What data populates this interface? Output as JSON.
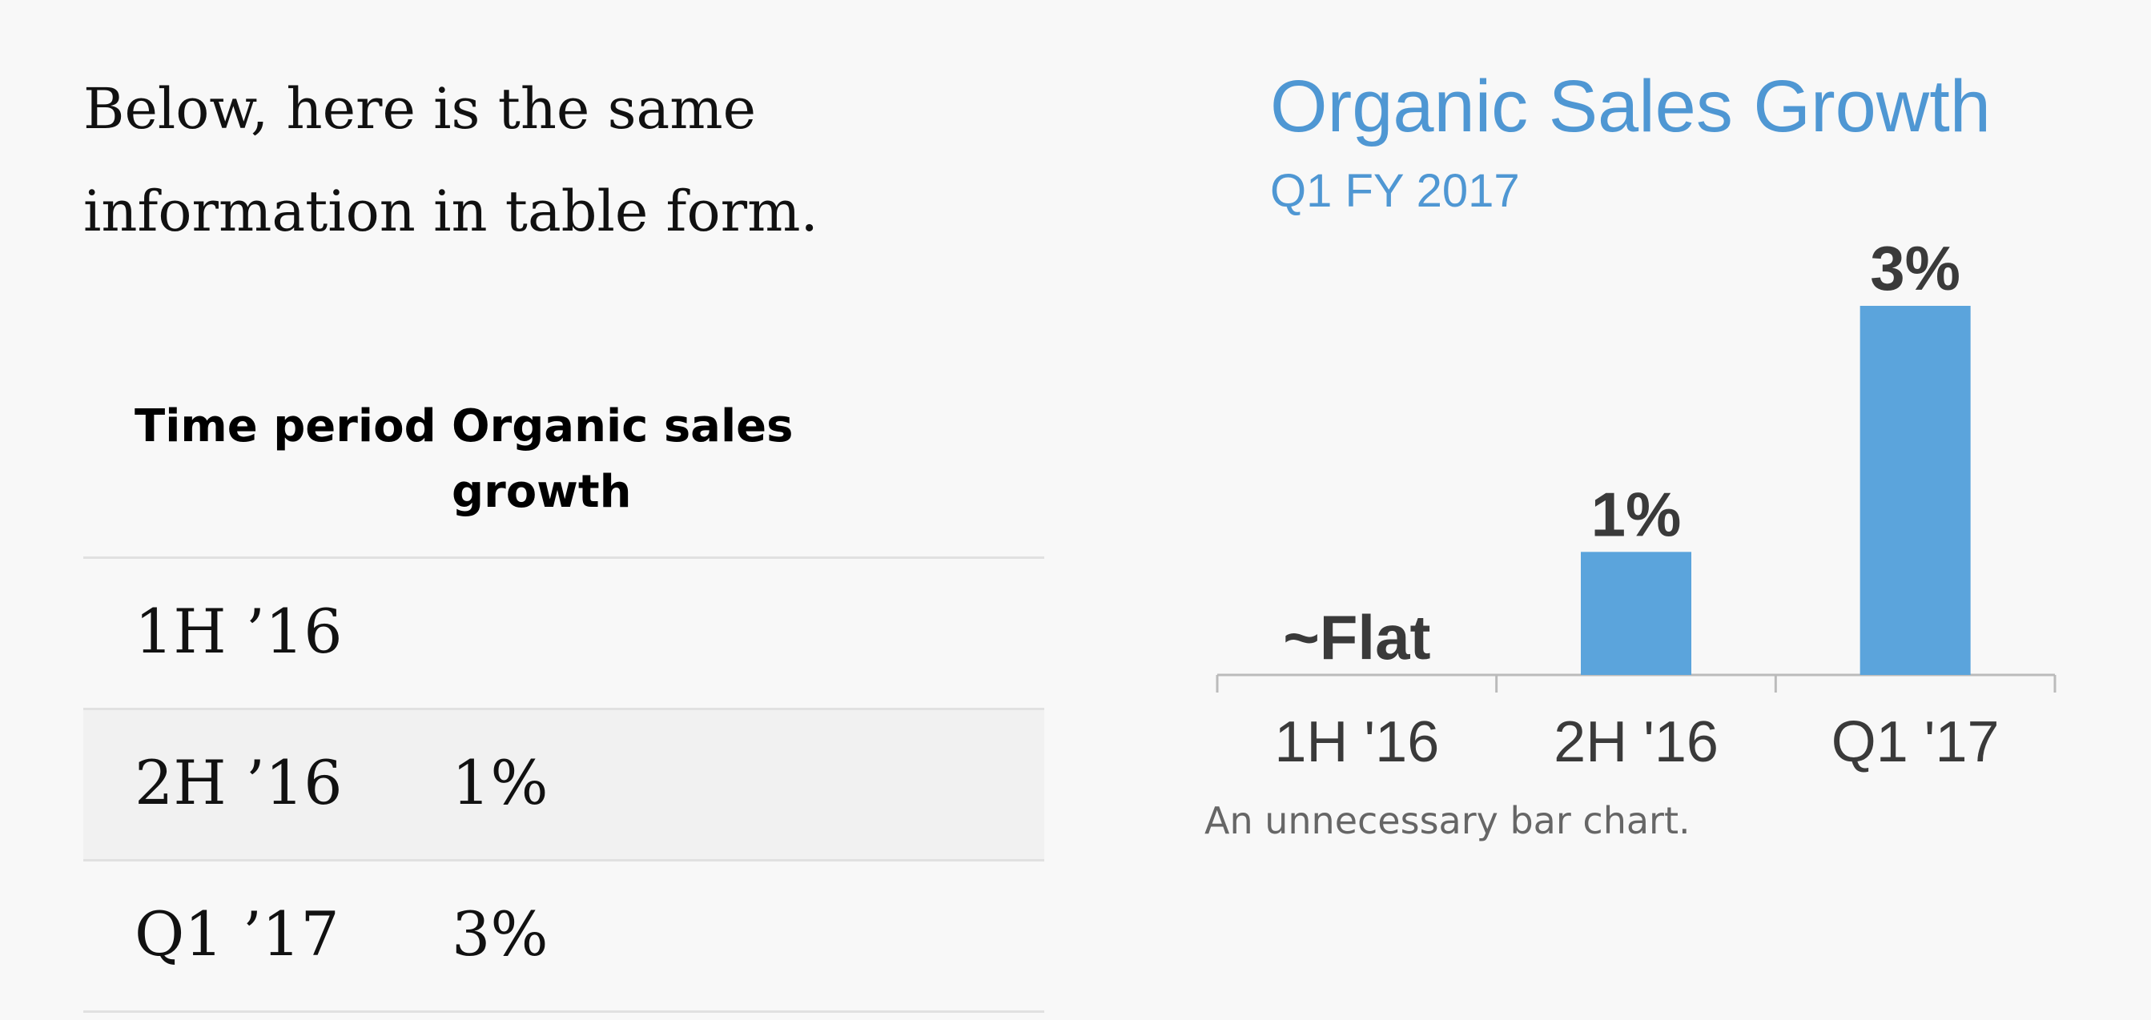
{
  "intro_text": "Below, here is the same information in table form.",
  "table": {
    "headers": [
      "Time period",
      "Organic sales growth"
    ],
    "rows": [
      [
        "1H ’16",
        ""
      ],
      [
        "2H ’16",
        "1%"
      ],
      [
        "Q1 ’17",
        "3%"
      ]
    ]
  },
  "chart_data": {
    "type": "bar",
    "title": "Organic Sales Growth",
    "subtitle": "Q1 FY 2017",
    "categories": [
      "1H '16",
      "2H '16",
      "Q1 '17"
    ],
    "values": [
      0,
      1,
      3
    ],
    "data_labels": [
      "~Flat",
      "1%",
      "3%"
    ],
    "ylim": [
      0,
      3
    ],
    "grid": false,
    "bar_color": "#5ba4dc",
    "title_color": "#4f97d3",
    "label_color": "#3a3a3a",
    "axis_color": "#bbbbbb"
  },
  "caption": "An unnecessary bar chart."
}
